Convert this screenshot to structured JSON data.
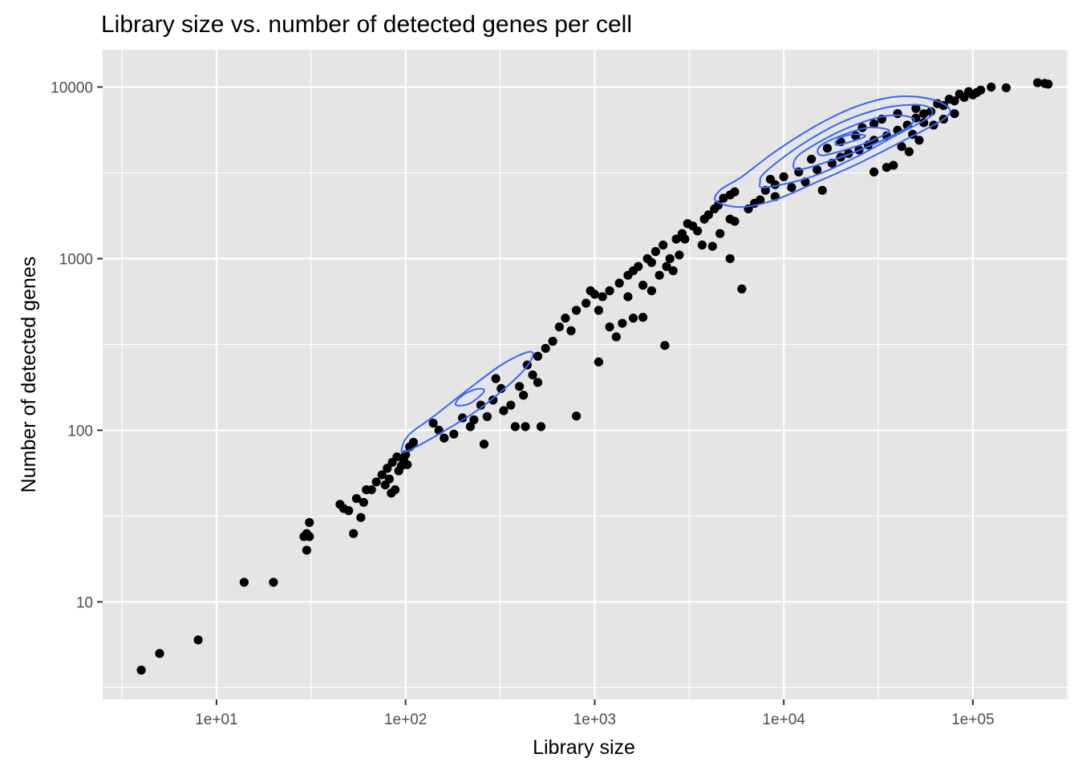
{
  "chart_data": {
    "type": "scatter",
    "title": "Library size vs. number of detected genes per cell",
    "xlabel": "Library size",
    "ylabel": "Number of detected genes",
    "x_scale": "log10",
    "y_scale": "log10",
    "xlim": [
      2.5,
      320000
    ],
    "ylim": [
      2.7,
      16500
    ],
    "x_ticks": [
      {
        "value": 10,
        "label": "1e+01"
      },
      {
        "value": 100,
        "label": "1e+02"
      },
      {
        "value": 1000,
        "label": "1e+03"
      },
      {
        "value": 10000,
        "label": "1e+04"
      },
      {
        "value": 100000,
        "label": "1e+05"
      }
    ],
    "y_ticks": [
      {
        "value": 10,
        "label": "10"
      },
      {
        "value": 100,
        "label": "100"
      },
      {
        "value": 1000,
        "label": "1000"
      },
      {
        "value": 10000,
        "label": "10000"
      }
    ],
    "grid": true,
    "legend": "none",
    "colors": {
      "panel_background": "#e5e5e5",
      "grid": "#ffffff",
      "points": "#000000",
      "density_contours": "#3366ff"
    },
    "series": [
      {
        "type": "scatter",
        "points": [
          [
            4,
            4
          ],
          [
            5,
            5
          ],
          [
            8,
            6
          ],
          [
            14,
            13
          ],
          [
            20,
            13
          ],
          [
            29,
            24
          ],
          [
            30,
            20
          ],
          [
            30,
            25
          ],
          [
            31,
            29
          ],
          [
            31,
            24
          ],
          [
            45,
            37
          ],
          [
            47,
            35
          ],
          [
            50,
            34
          ],
          [
            53,
            25
          ],
          [
            58,
            31
          ],
          [
            55,
            40
          ],
          [
            62,
            45
          ],
          [
            66,
            45
          ],
          [
            70,
            50
          ],
          [
            75,
            55
          ],
          [
            80,
            60
          ],
          [
            85,
            65
          ],
          [
            90,
            70
          ],
          [
            88,
            45
          ],
          [
            95,
            62
          ],
          [
            100,
            72
          ],
          [
            105,
            80
          ],
          [
            110,
            85
          ],
          [
            60,
            38
          ],
          [
            78,
            48
          ],
          [
            82,
            52
          ],
          [
            84,
            43
          ],
          [
            92,
            58
          ],
          [
            98,
            66
          ],
          [
            102,
            63
          ],
          [
            260,
            83
          ],
          [
            380,
            105
          ],
          [
            430,
            105
          ],
          [
            520,
            105
          ],
          [
            800,
            121
          ],
          [
            1050,
            250
          ],
          [
            2350,
            312
          ],
          [
            1800,
            455
          ],
          [
            5200,
            1000
          ],
          [
            6000,
            666
          ],
          [
            4200,
            1180
          ],
          [
            3500,
            1450
          ],
          [
            3000,
            1300
          ],
          [
            2800,
            1050
          ],
          [
            3700,
            1200
          ],
          [
            4600,
            1400
          ],
          [
            5200,
            1700
          ],
          [
            5500,
            1650
          ],
          [
            950,
            650
          ],
          [
            1000,
            620
          ],
          [
            1050,
            500
          ],
          [
            1500,
            600
          ],
          [
            1800,
            700
          ],
          [
            2000,
            650
          ],
          [
            2400,
            900
          ],
          [
            2600,
            850
          ],
          [
            2500,
            1000
          ],
          [
            1600,
            450
          ],
          [
            1200,
            400
          ],
          [
            1300,
            350
          ],
          [
            1400,
            420
          ],
          [
            750,
            380
          ],
          [
            700,
            450
          ],
          [
            650,
            400
          ],
          [
            600,
            330
          ],
          [
            550,
            300
          ],
          [
            500,
            270
          ],
          [
            470,
            210
          ],
          [
            500,
            190
          ],
          [
            440,
            240
          ],
          [
            420,
            160
          ],
          [
            400,
            180
          ],
          [
            360,
            140
          ],
          [
            330,
            130
          ],
          [
            300,
            200
          ],
          [
            320,
            175
          ],
          [
            290,
            150
          ],
          [
            270,
            120
          ],
          [
            250,
            140
          ],
          [
            230,
            115
          ],
          [
            200,
            118
          ],
          [
            180,
            95
          ],
          [
            220,
            105
          ],
          [
            160,
            90
          ],
          [
            150,
            100
          ],
          [
            140,
            110
          ],
          [
            7500,
            2200
          ],
          [
            8000,
            2500
          ],
          [
            9000,
            2700
          ],
          [
            10000,
            3000
          ],
          [
            12000,
            3200
          ],
          [
            15000,
            3300
          ],
          [
            18000,
            3600
          ],
          [
            20000,
            3900
          ],
          [
            22000,
            4100
          ],
          [
            25000,
            4300
          ],
          [
            28000,
            4600
          ],
          [
            30000,
            4900
          ],
          [
            35000,
            5200
          ],
          [
            40000,
            5600
          ],
          [
            45000,
            6000
          ],
          [
            50000,
            6600
          ],
          [
            55000,
            7000
          ],
          [
            60000,
            7200
          ],
          [
            70000,
            7800
          ],
          [
            80000,
            8300
          ],
          [
            90000,
            8700
          ],
          [
            100000,
            9000
          ],
          [
            105000,
            9300
          ],
          [
            110000,
            9600
          ],
          [
            125000,
            10000
          ],
          [
            150000,
            9900
          ],
          [
            220000,
            10600
          ],
          [
            240000,
            10500
          ],
          [
            250000,
            10400
          ],
          [
            42000,
            4500
          ],
          [
            38000,
            3500
          ],
          [
            35000,
            3400
          ],
          [
            30000,
            3200
          ],
          [
            13000,
            2800
          ],
          [
            16000,
            2500
          ],
          [
            11000,
            2600
          ],
          [
            9000,
            2300
          ],
          [
            7000,
            2100
          ],
          [
            6500,
            1950
          ],
          [
            8500,
            2900
          ],
          [
            14000,
            3800
          ],
          [
            17000,
            4400
          ],
          [
            20000,
            4800
          ],
          [
            24000,
            5200
          ],
          [
            26000,
            5800
          ],
          [
            30000,
            6100
          ],
          [
            33000,
            6500
          ],
          [
            40000,
            7000
          ],
          [
            50000,
            7500
          ],
          [
            65000,
            8000
          ],
          [
            75000,
            8500
          ],
          [
            85000,
            9100
          ],
          [
            95000,
            9400
          ],
          [
            62000,
            6000
          ],
          [
            70000,
            6500
          ],
          [
            80000,
            7000
          ],
          [
            55000,
            6200
          ],
          [
            48000,
            5300
          ],
          [
            52000,
            4900
          ],
          [
            46000,
            4200
          ],
          [
            4500,
            2050
          ],
          [
            4800,
            2250
          ],
          [
            5200,
            2350
          ],
          [
            5500,
            2450
          ],
          [
            4000,
            1800
          ],
          [
            4300,
            1950
          ],
          [
            3800,
            1700
          ],
          [
            3300,
            1550
          ],
          [
            2900,
            1400
          ],
          [
            2700,
            1300
          ],
          [
            2300,
            1200
          ],
          [
            2100,
            1100
          ],
          [
            1900,
            1000
          ],
          [
            1700,
            900
          ],
          [
            1500,
            800
          ],
          [
            1350,
            720
          ],
          [
            1200,
            650
          ],
          [
            1100,
            600
          ],
          [
            900,
            550
          ],
          [
            800,
            500
          ],
          [
            2200,
            800
          ],
          [
            2000,
            950
          ],
          [
            1600,
            850
          ],
          [
            3100,
            1600
          ]
        ]
      },
      {
        "type": "density_contour",
        "contours": [
          [
            [
              100,
              75
            ],
            [
              150,
              95
            ],
            [
              250,
              135
            ],
            [
              400,
              210
            ],
            [
              470,
              270
            ],
            [
              440,
              285
            ],
            [
              320,
              240
            ],
            [
              210,
              170
            ],
            [
              140,
              120
            ],
            [
              105,
              95
            ],
            [
              96,
              80
            ],
            [
              100,
              75
            ]
          ],
          [
            [
              185,
              140
            ],
            [
              215,
              142
            ],
            [
              250,
              160
            ],
            [
              260,
              172
            ],
            [
              240,
              174
            ],
            [
              210,
              165
            ],
            [
              190,
              152
            ],
            [
              185,
              140
            ]
          ],
          [
            [
              4400,
              2150
            ],
            [
              6000,
              2000
            ],
            [
              9000,
              2200
            ],
            [
              15000,
              2800
            ],
            [
              25000,
              3600
            ],
            [
              45000,
              5000
            ],
            [
              70000,
              6500
            ],
            [
              75000,
              7500
            ],
            [
              60000,
              8500
            ],
            [
              40000,
              8800
            ],
            [
              25000,
              7800
            ],
            [
              15000,
              6000
            ],
            [
              9000,
              4200
            ],
            [
              6000,
              3000
            ],
            [
              4600,
              2500
            ],
            [
              4400,
              2150
            ]
          ],
          [
            [
              8000,
              2600
            ],
            [
              14000,
              3000
            ],
            [
              24000,
              3900
            ],
            [
              40000,
              5300
            ],
            [
              60000,
              6800
            ],
            [
              55000,
              7800
            ],
            [
              35000,
              7600
            ],
            [
              20000,
              6200
            ],
            [
              12000,
              4500
            ],
            [
              8000,
              3200
            ],
            [
              7500,
              2800
            ],
            [
              8000,
              2600
            ]
          ],
          [
            [
              12000,
              3300
            ],
            [
              20000,
              3900
            ],
            [
              32000,
              4800
            ],
            [
              45000,
              5800
            ],
            [
              48000,
              6600
            ],
            [
              35000,
              6800
            ],
            [
              22000,
              5800
            ],
            [
              14000,
              4500
            ],
            [
              11500,
              3800
            ],
            [
              12000,
              3300
            ]
          ],
          [
            [
              16000,
              4000
            ],
            [
              24000,
              4500
            ],
            [
              32000,
              5100
            ],
            [
              36000,
              5600
            ],
            [
              28000,
              5800
            ],
            [
              20000,
              5200
            ],
            [
              15500,
              4500
            ],
            [
              16000,
              4000
            ]
          ],
          [
            [
              19000,
              4600
            ],
            [
              24000,
              4900
            ],
            [
              27000,
              5200
            ],
            [
              23000,
              5300
            ],
            [
              19500,
              5000
            ],
            [
              19000,
              4600
            ]
          ]
        ]
      }
    ]
  }
}
